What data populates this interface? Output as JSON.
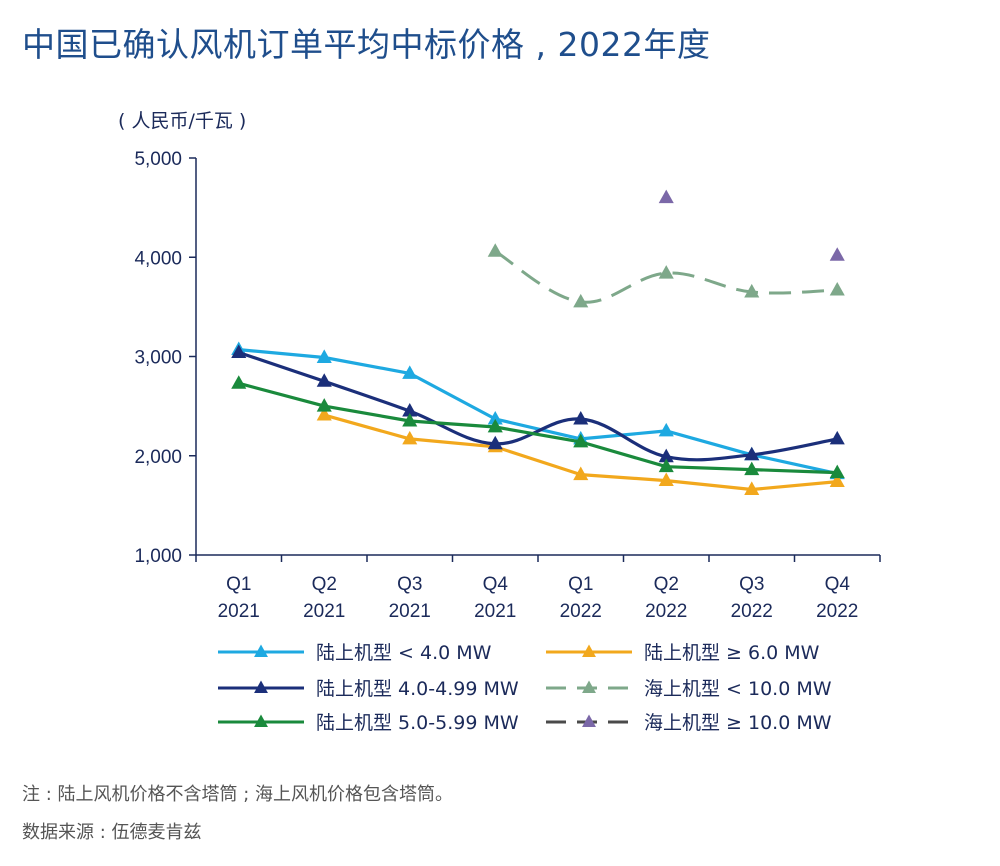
{
  "title": "中国已确认风机订单平均中标价格 , 2022年度",
  "chart_data": {
    "type": "line",
    "ylabel": "( 人民币/千瓦 )",
    "ylim": [
      1000,
      5000
    ],
    "yticks": [
      "1,000",
      "2,000",
      "3,000",
      "4,000",
      "5,000"
    ],
    "categories": [
      {
        "q": "Q1",
        "y": "2021"
      },
      {
        "q": "Q2",
        "y": "2021"
      },
      {
        "q": "Q3",
        "y": "2021"
      },
      {
        "q": "Q4",
        "y": "2021"
      },
      {
        "q": "Q1",
        "y": "2022"
      },
      {
        "q": "Q2",
        "y": "2022"
      },
      {
        "q": "Q3",
        "y": "2022"
      },
      {
        "q": "Q4",
        "y": "2022"
      }
    ],
    "series": [
      {
        "name": "陆上机型 < 4.0 MW",
        "color": "#1ea9e1",
        "dash": false,
        "smooth": false,
        "values": [
          3070,
          2990,
          2830,
          2370,
          2170,
          2250,
          2010,
          1820
        ]
      },
      {
        "name": "陆上机型 ≥ 6.0 MW",
        "color": "#f2a81d",
        "dash": false,
        "smooth": false,
        "values": [
          null,
          2410,
          2170,
          2090,
          1810,
          1750,
          1660,
          1740
        ]
      },
      {
        "name": "陆上机型 4.0-4.99 MW",
        "color": "#1b2f7a",
        "dash": false,
        "smooth": true,
        "values": [
          3040,
          2750,
          2450,
          2120,
          2370,
          1990,
          2010,
          2170
        ]
      },
      {
        "name": "海上机型 < 10.0 MW",
        "color": "#7ea88a",
        "dash": true,
        "smooth": true,
        "values": [
          null,
          null,
          null,
          4060,
          3550,
          3840,
          3650,
          3670
        ]
      },
      {
        "name": "陆上机型 5.0-5.99 MW",
        "color": "#1a8a3c",
        "dash": false,
        "smooth": false,
        "values": [
          2730,
          2500,
          2350,
          2290,
          2140,
          1890,
          1860,
          1830
        ]
      },
      {
        "name": "海上机型 ≥ 10.0 MW",
        "color": "#4a4a4a",
        "dash": true,
        "smooth": false,
        "markerColor": "#7b68a8",
        "values": [
          null,
          null,
          null,
          null,
          null,
          4600,
          null,
          4020
        ]
      }
    ],
    "legend": "bottom"
  },
  "notes": {
    "note1": "注 : 陆上风机价格不含塔筒 ; 海上风机价格包含塔筒。",
    "note2": "数据来源 : 伍德麦肯兹"
  }
}
